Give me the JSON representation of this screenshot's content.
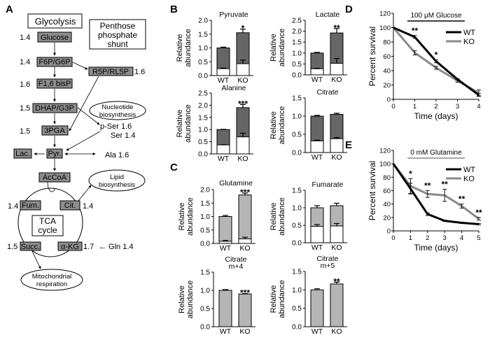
{
  "panel_labels": {
    "a": "A",
    "b": "B",
    "c": "C",
    "d": "D",
    "e": "E"
  },
  "colors": {
    "dark_fill": "#666666",
    "light_fill": "#b5b5b5",
    "wt": "#000000",
    "ko": "#8a8a8a",
    "node_fill": "#8c8c8c"
  },
  "diagram": {
    "glycolysis": "Glycolysis",
    "pentose": [
      "Penthose",
      "phosphate",
      "shunt"
    ],
    "nodes": {
      "glucose": {
        "label": "Glucose",
        "value": "1.4"
      },
      "f6p": {
        "label": "F6P/G6P",
        "value": "1.4"
      },
      "f16": {
        "label": "F1,6 bisP",
        "value": "1.6"
      },
      "dhap": {
        "label": "DHAP/G3P",
        "value": "1.5"
      },
      "pga": {
        "label": "3PGA",
        "value": "1.5"
      },
      "r5p": {
        "label": "R5P/RL5P",
        "value": "1.6"
      },
      "lac": {
        "label": "Lac."
      },
      "pyr": {
        "label": "Pyr."
      },
      "accoa": {
        "label": "AcCoA"
      },
      "fum": {
        "label": "Fum.",
        "value": "1.4"
      },
      "cit": {
        "label": "Cit.",
        "value": "1.4"
      },
      "succ": {
        "label": "Succ.",
        "value": "1.5"
      },
      "akg": {
        "label": "α-KG",
        "value": "1.7"
      }
    },
    "pser": "p-Ser  1.6",
    "ser": "Ser  1.4",
    "ala": "Ala  1.6",
    "gln": "← Gln  1.4",
    "tca": [
      "TCA",
      "cycle"
    ],
    "nucleotide": [
      "Nucleotide",
      "biosynthesis"
    ],
    "lipid": [
      "Lipid",
      "biosynthesis"
    ],
    "mito": [
      "Mitochondrial",
      "respiration"
    ]
  },
  "chart_data": [
    {
      "type": "bar",
      "panel": "B",
      "title": [
        "Pyruvate"
      ],
      "ylabel": [
        "Relative",
        "abundance"
      ],
      "categories": [
        "WT",
        "KO"
      ],
      "ylim": [
        0,
        2.0
      ],
      "yticks": [
        "0.0",
        "0.5",
        "1.0",
        "1.5",
        "2.0"
      ],
      "fill": "dark",
      "series": [
        {
          "values": [
            1.0,
            1.55
          ],
          "errors": [
            0.03,
            0.13
          ]
        },
        {
          "values": [
            0.25,
            0.43
          ],
          "errors": [
            0.02,
            0.13
          ]
        }
      ],
      "significance": [
        "",
        "*"
      ]
    },
    {
      "type": "bar",
      "panel": "B",
      "title": [
        "Lactate"
      ],
      "ylabel": [
        "Relative",
        "abundance"
      ],
      "categories": [
        "WT",
        "KO"
      ],
      "ylim": [
        0,
        2.5
      ],
      "yticks": [
        "0.0",
        "0.5",
        "1.0",
        "1.5",
        "2.0",
        "2.5"
      ],
      "fill": "dark",
      "series": [
        {
          "values": [
            1.0,
            1.92
          ],
          "errors": [
            0.03,
            0.2
          ]
        },
        {
          "values": [
            0.28,
            0.53
          ],
          "errors": [
            0.02,
            0.22
          ]
        }
      ],
      "significance": [
        "",
        "**"
      ]
    },
    {
      "type": "bar",
      "panel": "B",
      "title": [
        "Alanine"
      ],
      "ylabel": [
        "Relative",
        "abundance"
      ],
      "categories": [
        "WT",
        "KO"
      ],
      "ylim": [
        0,
        2.5
      ],
      "yticks": [
        "0.0",
        "0.5",
        "1.0",
        "1.5",
        "2.0",
        "2.5"
      ],
      "fill": "dark",
      "series": [
        {
          "values": [
            1.0,
            1.9
          ],
          "errors": [
            0.01,
            0.13
          ]
        },
        {
          "values": [
            0.37,
            0.7
          ],
          "errors": [
            0.01,
            0.15
          ]
        }
      ],
      "significance": [
        "",
        "***"
      ]
    },
    {
      "type": "bar",
      "panel": "B",
      "title": [
        "Citrate"
      ],
      "ylabel": [
        "Relative",
        "abundance"
      ],
      "categories": [
        "WT",
        "KO"
      ],
      "ylim": [
        0,
        1.5
      ],
      "yticks": [
        "0.0",
        "0.5",
        "1.0",
        "1.5"
      ],
      "fill": "dark",
      "series": [
        {
          "values": [
            1.0,
            1.05
          ],
          "errors": [
            0.02,
            0.03
          ]
        },
        {
          "values": [
            0.32,
            0.38
          ],
          "errors": [
            0.02,
            0.03
          ]
        }
      ],
      "significance": [
        "",
        ""
      ]
    },
    {
      "type": "bar",
      "panel": "C",
      "title": [
        "Glutamine"
      ],
      "ylabel": [
        "Relative",
        "abundance"
      ],
      "categories": [
        "WT",
        "KO"
      ],
      "ylim": [
        0,
        2.0
      ],
      "yticks": [
        "0.0",
        "0.5",
        "1.0",
        "1.5",
        "2.0"
      ],
      "fill": "light",
      "series": [
        {
          "values": [
            1.0,
            1.8
          ],
          "errors": [
            0.04,
            0.07
          ]
        },
        {
          "values": [
            0.08,
            0.17
          ],
          "errors": [
            0.03,
            0.06
          ]
        }
      ],
      "significance": [
        "",
        "***"
      ]
    },
    {
      "type": "bar",
      "panel": "C",
      "title": [
        "Fumarate"
      ],
      "ylabel": [
        "Relative",
        "abundance"
      ],
      "categories": [
        "WT",
        "KO"
      ],
      "ylim": [
        0,
        1.5
      ],
      "yticks": [
        "0.0",
        "0.5",
        "1.0",
        "1.5"
      ],
      "fill": "light",
      "series": [
        {
          "values": [
            1.0,
            1.06
          ],
          "errors": [
            0.06,
            0.07
          ]
        },
        {
          "values": [
            0.47,
            0.48
          ],
          "errors": [
            0.05,
            0.07
          ]
        }
      ],
      "significance": [
        "",
        ""
      ]
    },
    {
      "type": "bar",
      "panel": "C",
      "title": [
        "Citrate",
        "m+4"
      ],
      "ylabel": [
        "Relative",
        "abundance"
      ],
      "categories": [
        "WT",
        "KO"
      ],
      "ylim": [
        0,
        1.5
      ],
      "yticks": [
        "0.0",
        "0.5",
        "1.0",
        "1.5"
      ],
      "fill": "light",
      "series": [
        {
          "values": [
            1.0,
            0.9
          ],
          "errors": [
            0.02,
            0.01
          ]
        }
      ],
      "significance": [
        "",
        "***"
      ]
    },
    {
      "type": "bar",
      "panel": "C",
      "title": [
        "Citrate",
        "m+5"
      ],
      "ylabel": [
        "Relative",
        "abundance"
      ],
      "categories": [
        "WT",
        "KO"
      ],
      "ylim": [
        0,
        1.5
      ],
      "yticks": [
        "0.0",
        "0.5",
        "1.0",
        "1.5"
      ],
      "fill": "light",
      "series": [
        {
          "values": [
            1.0,
            1.16
          ],
          "errors": [
            0.03,
            0.05
          ]
        }
      ],
      "significance": [
        "",
        "**"
      ]
    },
    {
      "type": "line",
      "panel": "D",
      "title": "100 μM Glucose",
      "xlabel": "Time (days)",
      "ylabel": "Percent survival",
      "x": [
        0,
        1,
        2,
        3,
        4
      ],
      "xlim": [
        0,
        4
      ],
      "ylim": [
        0,
        120
      ],
      "yticks": [
        0,
        20,
        40,
        60,
        80,
        100,
        120
      ],
      "legend": "top-right",
      "series": [
        {
          "name": "WT",
          "values": [
            100,
            87,
            53,
            28,
            6
          ],
          "errors": [
            0,
            2,
            2,
            1,
            2
          ]
        },
        {
          "name": "KO",
          "values": [
            100,
            65,
            44,
            26,
            9
          ],
          "errors": [
            0,
            3,
            2,
            2,
            4
          ]
        }
      ],
      "significance": [
        "",
        "**",
        "*",
        "",
        ""
      ]
    },
    {
      "type": "line",
      "panel": "E",
      "title": "0 mM Glutamine",
      "xlabel": "Time (days)",
      "ylabel": "Percent survival",
      "x": [
        0,
        1,
        2,
        3,
        4,
        5
      ],
      "xlim": [
        0,
        5
      ],
      "ylim": [
        0,
        120
      ],
      "yticks": [
        0,
        20,
        40,
        60,
        80,
        100,
        120
      ],
      "legend": "top-right",
      "series": [
        {
          "name": "WT",
          "values": [
            100,
            63,
            25,
            15,
            12,
            10
          ],
          "errors": [
            0,
            8,
            2,
            1,
            1,
            1
          ]
        },
        {
          "name": "KO",
          "values": [
            100,
            67,
            55,
            53,
            37,
            18
          ],
          "errors": [
            0,
            11,
            5,
            9,
            3,
            2
          ]
        }
      ],
      "significance": [
        "",
        "*",
        "**",
        "**",
        "**",
        "**"
      ]
    }
  ]
}
